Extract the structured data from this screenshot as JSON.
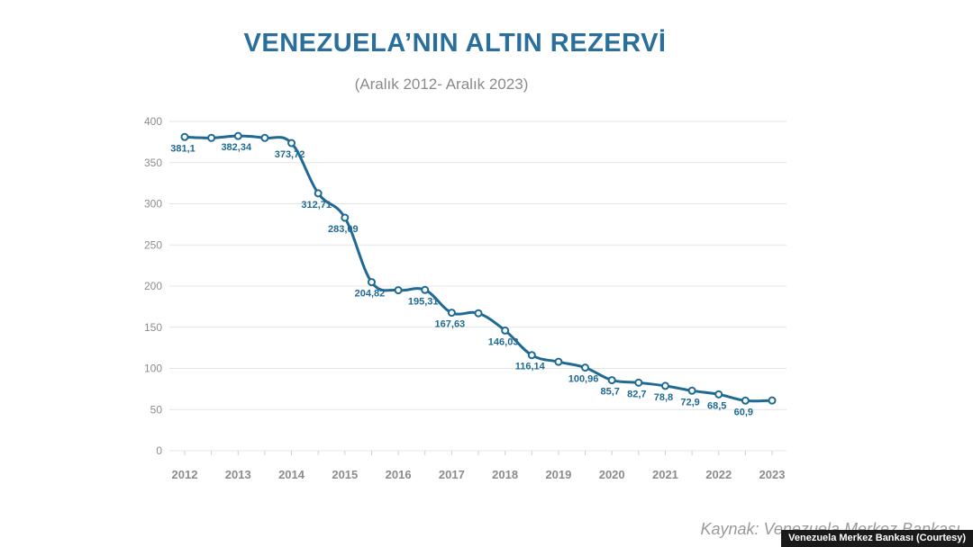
{
  "chart_data": {
    "type": "line",
    "title": "VENEZUELA’NIN ALTIN REZERVİ",
    "subtitle": "(Aralık 2012- Aralık 2023)",
    "x": [
      2012,
      2012.5,
      2013,
      2013.5,
      2014,
      2014.5,
      2015,
      2015.5,
      2016,
      2016.5,
      2017,
      2017.5,
      2018,
      2018.5,
      2019,
      2019.5,
      2020,
      2020.5,
      2021,
      2021.5,
      2022,
      2022.5,
      2023
    ],
    "values": [
      381.1,
      380,
      382.34,
      380,
      373.72,
      312.71,
      283.09,
      204.82,
      195,
      195.31,
      167.63,
      167,
      146.03,
      116.14,
      108,
      100.96,
      85.7,
      82.7,
      78.8,
      72.9,
      68.5,
      60.9,
      61
    ],
    "labels": [
      "381,1",
      "",
      "382,34",
      "",
      "373,72",
      "312,71",
      "283,09",
      "204,82",
      "",
      "195,31",
      "167,63",
      "",
      "146,03",
      "116,14",
      "",
      "100,96",
      "85,7",
      "82,7",
      "78,8",
      "72,9",
      "68,5",
      "60,9",
      ""
    ],
    "x_ticks": [
      "2012",
      "2013",
      "2014",
      "2015",
      "2016",
      "2017",
      "2018",
      "2019",
      "2020",
      "2021",
      "2022",
      "2023"
    ],
    "y_ticks": [
      "0",
      "50",
      "100",
      "150",
      "200",
      "250",
      "300",
      "350",
      "400"
    ],
    "xlabel": "",
    "ylabel": "",
    "ylim": [
      0,
      400
    ],
    "xlim": [
      2012,
      2023
    ],
    "grid": true,
    "legend": "none",
    "colors": {
      "line": "#1f6a94",
      "label": "#1f6a94",
      "tick": "#8c8c8c",
      "grid": "#e4e4e4",
      "title": "#2a6f9c"
    }
  },
  "footer": {
    "source": "Kaynak: Venezuela Merkez Bankası",
    "credit": "Venezuela Merkez Bankası (Courtesy)"
  }
}
